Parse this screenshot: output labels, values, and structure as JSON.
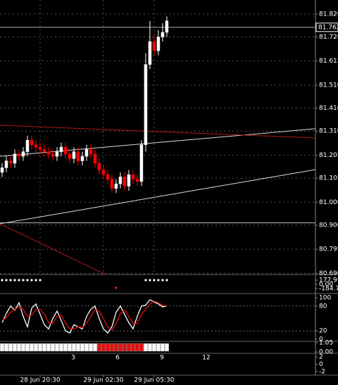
{
  "chart_data": [
    {
      "type": "candlestick",
      "open": [
        81.13,
        81.15,
        81.18,
        81.17,
        81.21,
        81.2,
        81.22,
        81.27,
        81.25,
        81.24,
        81.23,
        81.22,
        81.21,
        81.2,
        81.22,
        81.24,
        81.21,
        81.19,
        81.22,
        81.18,
        81.2,
        81.23,
        81.21,
        81.17,
        81.14,
        81.12,
        81.1,
        81.06,
        81.08,
        81.11,
        81.07,
        81.12,
        81.1,
        81.09,
        81.25,
        81.6,
        81.7,
        81.66,
        81.72,
        81.74
      ],
      "high": [
        81.17,
        81.2,
        81.2,
        81.23,
        81.23,
        81.24,
        81.29,
        81.29,
        81.27,
        81.26,
        81.25,
        81.24,
        81.23,
        81.24,
        81.26,
        81.26,
        81.23,
        81.24,
        81.24,
        81.22,
        81.25,
        81.25,
        81.23,
        81.19,
        81.16,
        81.14,
        81.12,
        81.1,
        81.13,
        81.13,
        81.14,
        81.14,
        81.12,
        81.27,
        81.65,
        81.79,
        81.73,
        81.75,
        81.78,
        81.81
      ],
      "low": [
        81.11,
        81.13,
        81.15,
        81.15,
        81.18,
        81.18,
        81.2,
        81.23,
        81.22,
        81.21,
        81.2,
        81.19,
        81.18,
        81.18,
        81.2,
        81.19,
        81.17,
        81.17,
        81.16,
        81.16,
        81.18,
        81.19,
        81.15,
        81.12,
        81.1,
        81.08,
        81.04,
        81.04,
        81.06,
        81.05,
        81.05,
        81.08,
        81.07,
        81.07,
        81.22,
        81.58,
        81.64,
        81.64,
        81.7,
        81.72
      ],
      "close": [
        81.15,
        81.18,
        81.17,
        81.21,
        81.2,
        81.22,
        81.27,
        81.25,
        81.24,
        81.23,
        81.22,
        81.21,
        81.2,
        81.22,
        81.24,
        81.21,
        81.19,
        81.22,
        81.18,
        81.2,
        81.23,
        81.21,
        81.17,
        81.14,
        81.12,
        81.1,
        81.06,
        81.08,
        81.11,
        81.07,
        81.12,
        81.1,
        81.09,
        81.25,
        81.6,
        81.7,
        81.66,
        81.72,
        81.74,
        81.79
      ],
      "up_color": "#ffffff",
      "down_color": "#ff0000",
      "xlim": [
        -0.5,
        74.2
      ],
      "xticks": [
        {
          "value": 9,
          "label": "28 Jun 20:30"
        },
        {
          "value": 24,
          "label": "29 Jun 02:30"
        },
        {
          "value": 36,
          "label": "29 Jun 05:30"
        }
      ],
      "ylim": [
        80.685,
        81.881
      ],
      "yticks": [
        {
          "value": 81.82,
          "label": "81.820"
        },
        {
          "value": 81.72,
          "label": "81.720"
        },
        81.615,
        {
          "value": 81.51,
          "label": "81.510"
        },
        {
          "value": 81.41,
          "label": "81.410"
        },
        {
          "value": 81.31,
          "label": "81.310"
        },
        81.205,
        81.105,
        {
          "value": 81.0,
          "label": "81.000"
        },
        {
          "value": 80.9,
          "label": "80.900"
        },
        80.795,
        {
          "value": 80.69,
          "label": "80.690"
        }
      ],
      "last_price": 81.762,
      "trendlines": [
        {
          "x": [
            -0.5,
            74.2
          ],
          "values": [
            80.906,
            81.142
          ],
          "color": "#dddddd"
        },
        {
          "x": [
            -0.5,
            74.2
          ],
          "values": [
            81.2,
            81.32
          ],
          "color": "#dddddd"
        },
        {
          "x": [
            -0.5,
            74.2
          ],
          "values": [
            81.335,
            81.28
          ],
          "color": "#b01818"
        },
        {
          "x": [
            -0.5,
            24.5
          ],
          "values": [
            80.906,
            80.685
          ],
          "color": "#b01818"
        },
        {
          "x": [
            -0.5,
            74.2
          ],
          "values": [
            80.91,
            80.91
          ],
          "color": "#bbbbbb"
        }
      ],
      "grid": true
    },
    {
      "type": "dots",
      "ylim": [
        -366,
        389
      ],
      "yticks": [
        177.951,
        {
          "value": 0,
          "label": "0.00"
        },
        {
          "value": -184.76,
          "label": "-184.76"
        }
      ],
      "series": [
        {
          "color": "#ffffff",
          "values": [
            177.951,
            177.951,
            177.951,
            177.951,
            177.951,
            177.951,
            177.951,
            177.951,
            177.951,
            177.951,
            null,
            null,
            null,
            null,
            null,
            null,
            null,
            null,
            null,
            null,
            null,
            null,
            null,
            null,
            null,
            null,
            null,
            null,
            null,
            null,
            null,
            null,
            null,
            null,
            177.951,
            177.951,
            177.951,
            177.951,
            177.951,
            177.951
          ]
        },
        {
          "color": "#ff2020",
          "values": [
            null,
            null,
            null,
            null,
            null,
            null,
            null,
            null,
            null,
            null,
            null,
            null,
            null,
            null,
            null,
            null,
            null,
            null,
            null,
            null,
            null,
            null,
            null,
            null,
            null,
            null,
            null,
            -150,
            null,
            null,
            null,
            null,
            null,
            null,
            null,
            null,
            null,
            null,
            null,
            null
          ]
        }
      ]
    },
    {
      "type": "line",
      "ylim": [
        0,
        100
      ],
      "yticks": [
        100,
        80,
        20,
        0
      ],
      "levels": [
        80,
        20
      ],
      "series": [
        {
          "color": "#ffffff",
          "values": [
            40,
            62,
            80,
            70,
            88,
            55,
            30,
            75,
            85,
            60,
            35,
            25,
            50,
            68,
            45,
            20,
            15,
            35,
            30,
            25,
            55,
            72,
            80,
            50,
            25,
            15,
            30,
            65,
            80,
            60,
            40,
            25,
            55,
            80,
            82,
            95,
            90,
            85,
            78,
            80
          ]
        },
        {
          "color": "#e01010",
          "values": [
            45,
            52,
            65,
            72,
            78,
            72,
            55,
            58,
            72,
            72,
            60,
            40,
            38,
            55,
            58,
            40,
            25,
            25,
            30,
            28,
            38,
            55,
            72,
            68,
            50,
            30,
            22,
            38,
            62,
            70,
            55,
            38,
            38,
            60,
            72,
            85,
            92,
            88,
            82,
            80
          ]
        }
      ]
    },
    {
      "type": "strip",
      "ylim": [
        0,
        1.05
      ],
      "yticks": [
        1.05,
        {
          "value": 0,
          "label": "0.00"
        }
      ],
      "colors": [
        "#ffffff",
        "#ffffff",
        "#ffffff",
        "#ffffff",
        "#ffffff",
        "#ffffff",
        "#ffffff",
        "#ffffff",
        "#ffffff",
        "#ffffff",
        "#ffffff",
        "#ffffff",
        "#ffffff",
        "#ffffff",
        "#ffffff",
        "#ffffff",
        "#ffffff",
        "#ffffff",
        "#ffffff",
        "#ffffff",
        "#ffffff",
        "#ffffff",
        "#ffffff",
        "#e01010",
        "#e01010",
        "#e01010",
        "#e01010",
        "#e01010",
        "#e01010",
        "#e01010",
        "#e01010",
        "#e01010",
        "#e01010",
        "#e01010",
        "#ffffff",
        "#ffffff",
        "#ffffff",
        "#ffffff",
        "#ffffff",
        "#ffffff"
      ]
    },
    {
      "type": "axis",
      "xlim": [
        -1.95,
        19.38
      ],
      "xticks": [
        3,
        6,
        9,
        12
      ],
      "ylim": [
        -2.8,
        2.8
      ],
      "yticks": [
        2,
        0,
        -2
      ]
    }
  ]
}
